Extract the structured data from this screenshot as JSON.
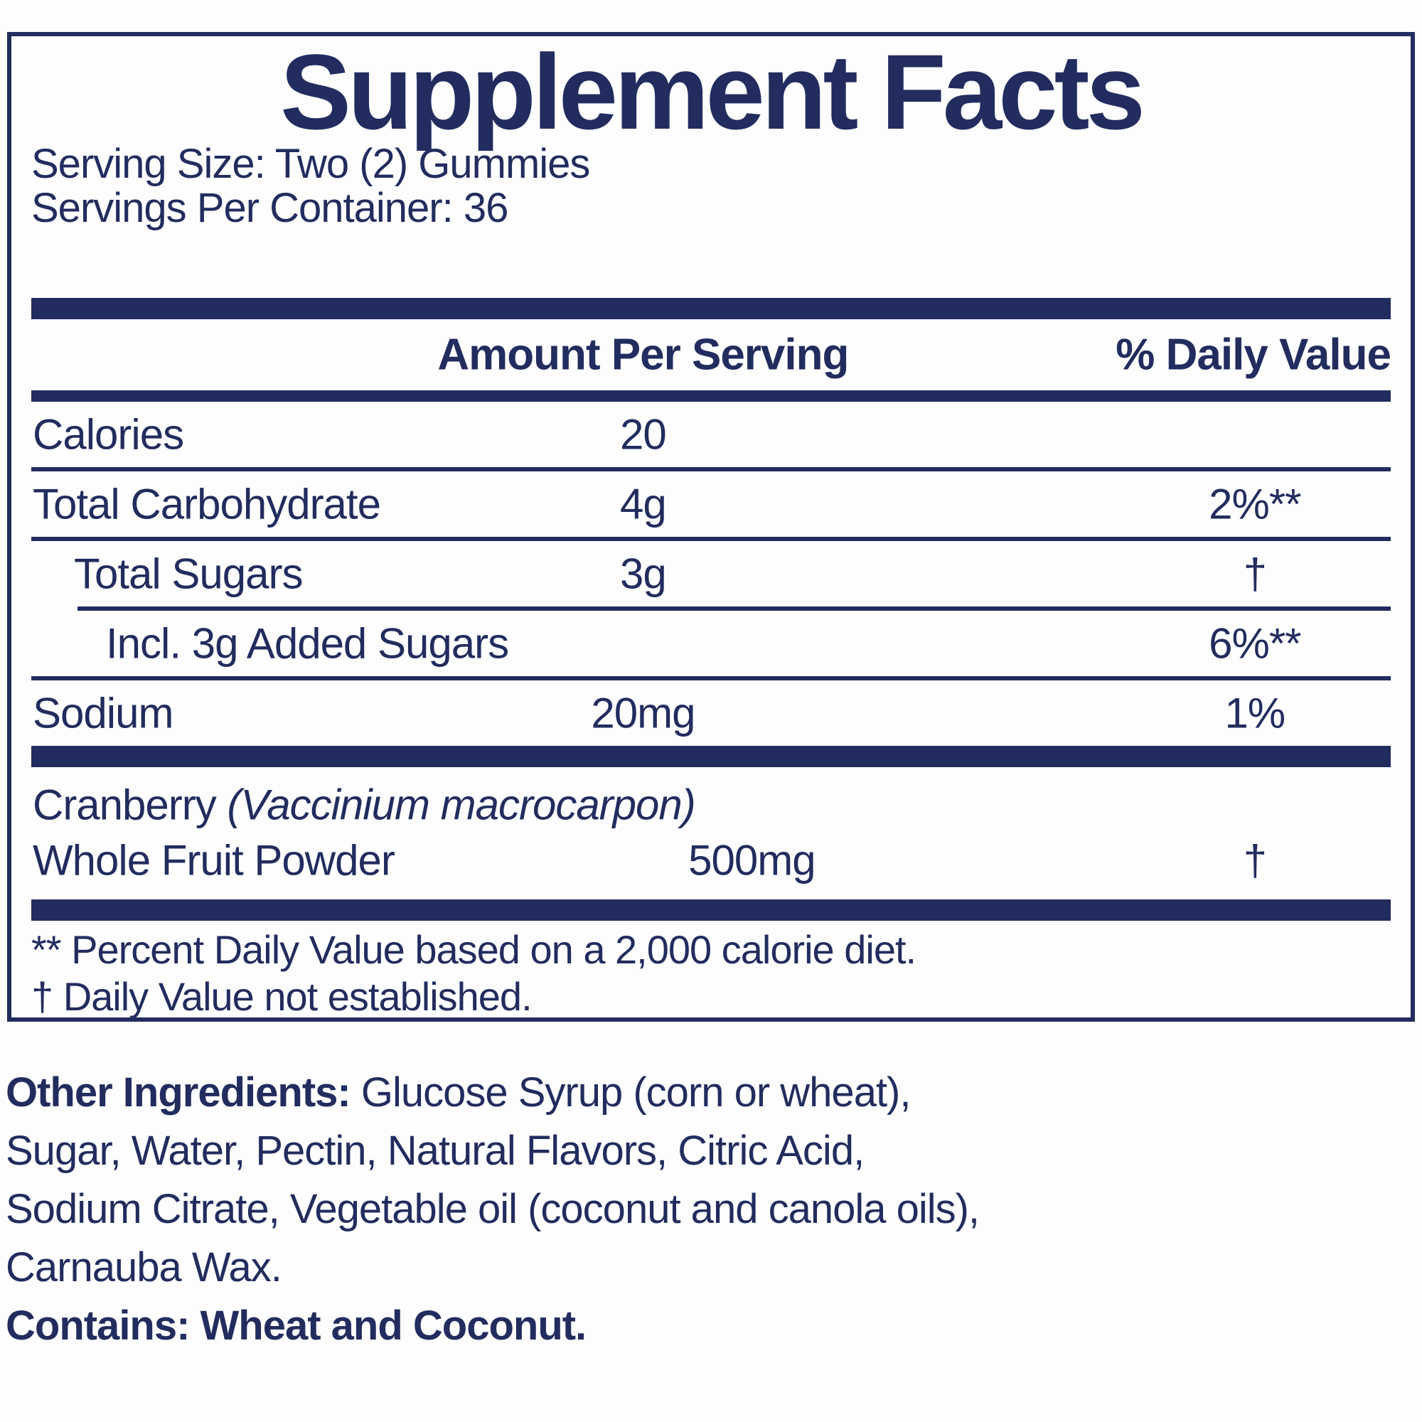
{
  "colors": {
    "navy": "#222c5e",
    "background": "#fdfdfe"
  },
  "label": {
    "title": "Supplement Facts",
    "serving_size": "Serving Size: Two (2) Gummies",
    "servings_per_container": "Servings Per Container: 36",
    "header": {
      "amount": "Amount Per Serving",
      "daily_value": "% Daily Value"
    },
    "rows": [
      {
        "name": "Calories",
        "amount": "20",
        "dv": "",
        "indent": 0
      },
      {
        "name": "Total Carbohydrate",
        "amount": "4g",
        "dv": "2%**",
        "indent": 0
      },
      {
        "name": "Total Sugars",
        "amount": "3g",
        "dv": "†",
        "indent": 1
      },
      {
        "name": "Incl. 3g Added Sugars",
        "amount": "",
        "dv": "6%**",
        "indent": 2
      },
      {
        "name": "Sodium",
        "amount": "20mg",
        "dv": "1%",
        "indent": 0
      }
    ],
    "ingredient_row": {
      "name_regular": "Cranberry ",
      "name_latin": "(Vaccinium macrocarpon)",
      "name_line2": "Whole Fruit Powder",
      "amount": "500mg",
      "dv": "†"
    },
    "footnotes": [
      "** Percent Daily Value based on a 2,000 calorie diet.",
      "† Daily Value not established."
    ]
  },
  "other_ingredients": {
    "label": "Other Ingredients:",
    "line1_rest": " Glucose Syrup (corn or wheat),",
    "line2": "Sugar, Water, Pectin, Natural Flavors, Citric Acid,",
    "line3": "Sodium Citrate, Vegetable oil (coconut and canola oils),",
    "line4": "Carnauba Wax."
  },
  "contains": "Contains: Wheat and Coconut."
}
